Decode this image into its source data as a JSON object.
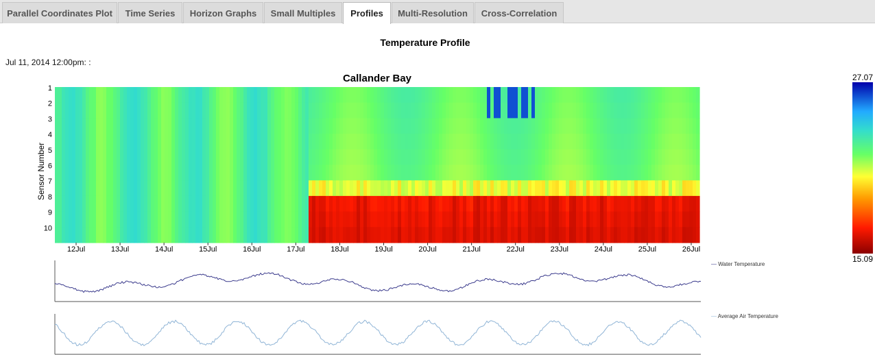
{
  "tabs": [
    {
      "label": "Parallel Coordinates Plot",
      "active": false
    },
    {
      "label": "Time Series",
      "active": false
    },
    {
      "label": "Horizon Graphs",
      "active": false
    },
    {
      "label": "Small Multiples",
      "active": false
    },
    {
      "label": "Profiles",
      "active": true
    },
    {
      "label": "Multi-Resolution",
      "active": false
    },
    {
      "label": "Cross-Correlation",
      "active": false
    }
  ],
  "page_title": "Temperature Profile",
  "timestamp": "Jul 11, 2014 12:00pm: :",
  "colors": {
    "low": "#8b0000",
    "mid": "#ffff33",
    "high": "#0000aa",
    "water_line": "#3a3a8c",
    "air_line": "#8fb4d6"
  },
  "chart_data": [
    {
      "type": "heatmap",
      "title": "Callander Bay",
      "ylabel": "Sensor Number",
      "y_ticks": [
        "1",
        "2",
        "3",
        "4",
        "5",
        "6",
        "7",
        "8",
        "9",
        "10"
      ],
      "x_ticks": [
        "12Jul",
        "13Jul",
        "14Jul",
        "15Jul",
        "16Jul",
        "17Jul",
        "18Jul",
        "19Jul",
        "20Jul",
        "21Jul",
        "22Jul",
        "23Jul",
        "24Jul",
        "25Jul",
        "26Jul"
      ],
      "color_scale": {
        "min": "15.09",
        "max": "27.07"
      },
      "description_of_values": "Fairly uniform mid temperatures before 17Jul; from 17Jul onward warm (red) bottom sensors 8-10, cooler (blue) top sensors near 22Jul"
    },
    {
      "type": "line",
      "series": [
        {
          "name": "Water Temperature"
        }
      ]
    },
    {
      "type": "line",
      "series": [
        {
          "name": "Average Air Temperature"
        }
      ]
    }
  ]
}
